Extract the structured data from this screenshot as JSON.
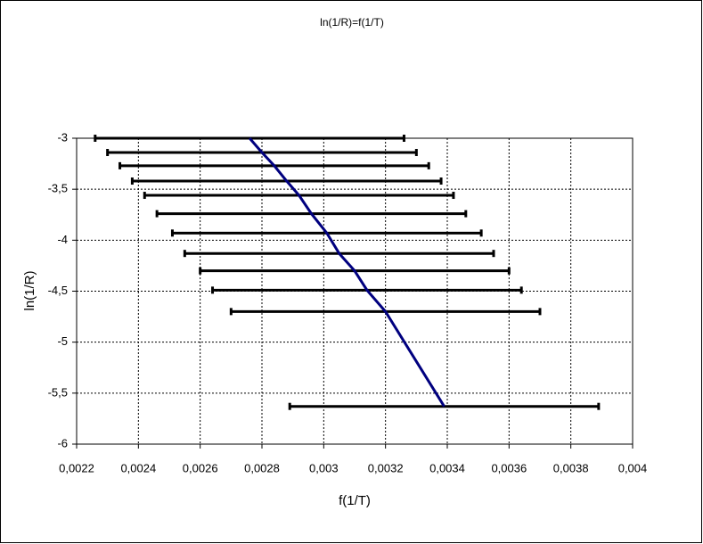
{
  "chart_data": {
    "type": "line",
    "title": "ln(1/R)=f(1/T)",
    "x_label": "f(1/T)",
    "y_label": "ln(1/R)",
    "x": [
      0.00276,
      0.0028,
      0.00284,
      0.00288,
      0.00292,
      0.00296,
      0.00301,
      0.00305,
      0.0031,
      0.00314,
      0.0032,
      0.00339
    ],
    "series": [
      {
        "name": "ln(1/R)",
        "color": "#00007f",
        "values": [
          -3.0,
          -3.14,
          -3.27,
          -3.42,
          -3.56,
          -3.74,
          -3.93,
          -4.13,
          -4.3,
          -4.49,
          -4.7,
          -5.63
        ],
        "xerr": [
          0.0005,
          0.0005,
          0.0005,
          0.0005,
          0.0005,
          0.0005,
          0.0005,
          0.0005,
          0.0005,
          0.0005,
          0.0005,
          0.0005
        ],
        "error_color": "#000000"
      }
    ],
    "xlim": [
      0.0022,
      0.004
    ],
    "ylim": [
      -6,
      -3
    ],
    "xticks": [
      {
        "value": 0.0022,
        "label": "0,0022"
      },
      {
        "value": 0.0024,
        "label": "0,0024"
      },
      {
        "value": 0.0026,
        "label": "0,0026"
      },
      {
        "value": 0.0028,
        "label": "0,0028"
      },
      {
        "value": 0.003,
        "label": "0,003"
      },
      {
        "value": 0.0032,
        "label": "0,0032"
      },
      {
        "value": 0.0034,
        "label": "0,0034"
      },
      {
        "value": 0.0036,
        "label": "0,0036"
      },
      {
        "value": 0.0038,
        "label": "0,0038"
      },
      {
        "value": 0.004,
        "label": "0,004"
      }
    ],
    "yticks": [
      -3,
      {
        "value": -3.5,
        "label": "-3,5"
      },
      -4,
      {
        "value": -4.5,
        "label": "-4,5"
      },
      -5,
      {
        "value": -5.5,
        "label": "-5,5"
      },
      -6
    ],
    "grid": true
  }
}
